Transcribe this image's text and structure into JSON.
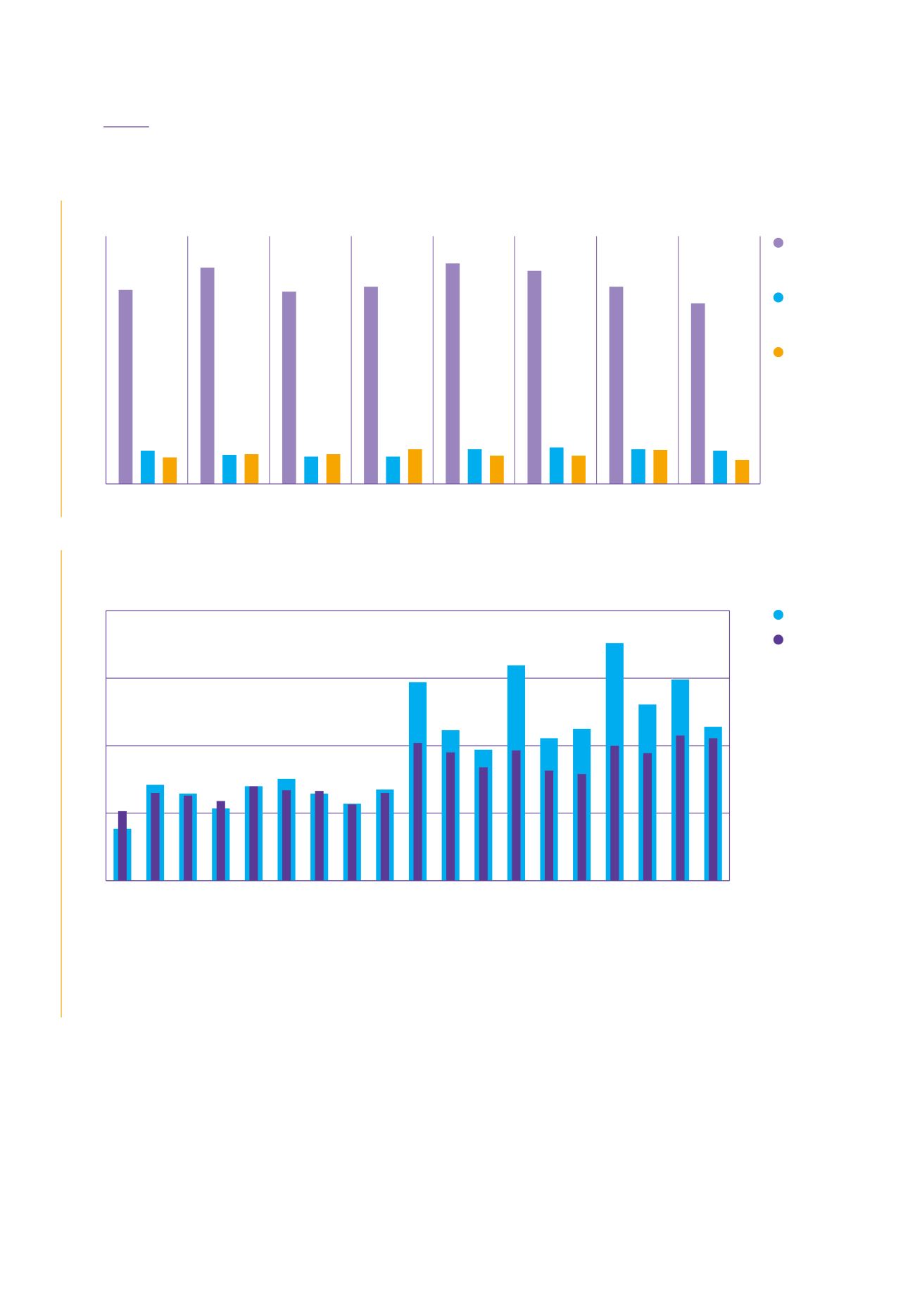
{
  "chart_data": [
    {
      "type": "bar",
      "barmode": "group",
      "categories": [
        null,
        null,
        null,
        null,
        null,
        null,
        null,
        null
      ],
      "ylim": [
        0,
        100
      ],
      "series": [
        {
          "color": "#9b85bf",
          "values": [
            78.3,
            87.3,
            77.6,
            79.6,
            89,
            86,
            79.6,
            72.9
          ]
        },
        {
          "color": "#00aeef",
          "values": [
            13.4,
            11.7,
            11,
            11,
            14,
            14.7,
            14,
            13.4
          ]
        },
        {
          "color": "#f7a600",
          "values": [
            10.7,
            12,
            12,
            14,
            11.4,
            11.4,
            13.7,
            9.7
          ]
        }
      ]
    },
    {
      "type": "bar",
      "barmode": "overlay",
      "grid": true,
      "categories": [
        null,
        null,
        null,
        null,
        null,
        null,
        null,
        null,
        null,
        null,
        null,
        null,
        null,
        null,
        null,
        null,
        null,
        null,
        null
      ],
      "ylim": [
        0,
        4
      ],
      "yticks": [
        0,
        1,
        2,
        3,
        4
      ],
      "series": [
        {
          "color": "#00aeef",
          "values": [
            0.77,
            1.42,
            1.29,
            1.07,
            1.4,
            1.51,
            1.29,
            1.14,
            1.35,
            2.94,
            2.23,
            1.94,
            3.19,
            2.11,
            2.25,
            3.52,
            2.61,
            2.98,
            2.28
          ]
        },
        {
          "color": "#5b3a96",
          "values": [
            1.03,
            1.3,
            1.26,
            1.18,
            1.4,
            1.34,
            1.33,
            1.13,
            1.3,
            2.04,
            1.9,
            1.68,
            1.93,
            1.63,
            1.58,
            2.0,
            1.89,
            2.15,
            2.11
          ]
        }
      ]
    }
  ]
}
